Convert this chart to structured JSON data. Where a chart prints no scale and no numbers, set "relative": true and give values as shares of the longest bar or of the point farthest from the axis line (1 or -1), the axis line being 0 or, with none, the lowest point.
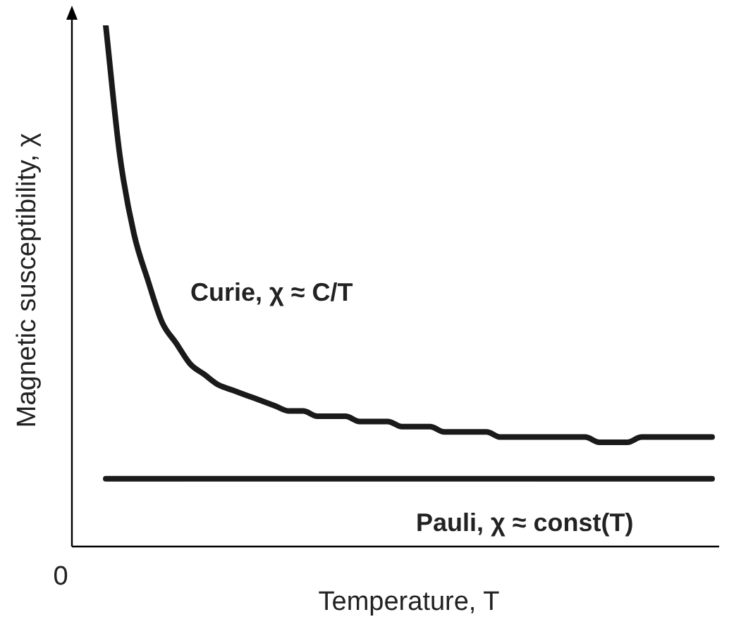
{
  "chart_data": {
    "type": "line",
    "relative": true,
    "xlabel": "Temperature, T",
    "ylabel": "Magnetic susceptibility, χ",
    "annotations": [
      "0"
    ],
    "legend": false,
    "marker": "none",
    "line_style": "solid",
    "categories": [
      null,
      null,
      null,
      null,
      null,
      null,
      null,
      null,
      null,
      null,
      null,
      null,
      null,
      null,
      null,
      null,
      null,
      null,
      null,
      null,
      null,
      null,
      null,
      null,
      null,
      null,
      null,
      null,
      null,
      null,
      null,
      null,
      null,
      null,
      null,
      null,
      null,
      null,
      null,
      null,
      null,
      null,
      null,
      null
    ],
    "series": [
      {
        "name": "Curie, χ ≈ C/T",
        "color": "#1a1a1a",
        "values": [
          1.0,
          0.75,
          0.6,
          0.51,
          0.43,
          0.39,
          0.35,
          0.33,
          0.31,
          0.3,
          0.29,
          0.28,
          0.27,
          0.26,
          0.26,
          0.25,
          0.25,
          0.25,
          0.24,
          0.24,
          0.24,
          0.23,
          0.23,
          0.23,
          0.22,
          0.22,
          0.22,
          0.22,
          0.21,
          0.21,
          0.21,
          0.21,
          0.21,
          0.21,
          0.21,
          0.2,
          0.2,
          0.2,
          0.21,
          0.21,
          0.21,
          0.21,
          0.21,
          0.21
        ]
      },
      {
        "name": "Pauli, χ ≈ const(T)",
        "color": "#1a1a1a",
        "values": [
          0.13,
          0.13,
          0.13,
          0.13,
          0.13,
          0.13,
          0.13,
          0.13,
          0.13,
          0.13,
          0.13,
          0.13,
          0.13,
          0.13,
          0.13,
          0.13,
          0.13,
          0.13,
          0.13,
          0.13,
          0.13,
          0.13,
          0.13,
          0.13,
          0.13,
          0.13,
          0.13,
          0.13,
          0.13,
          0.13,
          0.13,
          0.13,
          0.13,
          0.13,
          0.13,
          0.13,
          0.13,
          0.13,
          0.13,
          0.13,
          0.13,
          0.13,
          0.13,
          0.13
        ]
      }
    ]
  }
}
